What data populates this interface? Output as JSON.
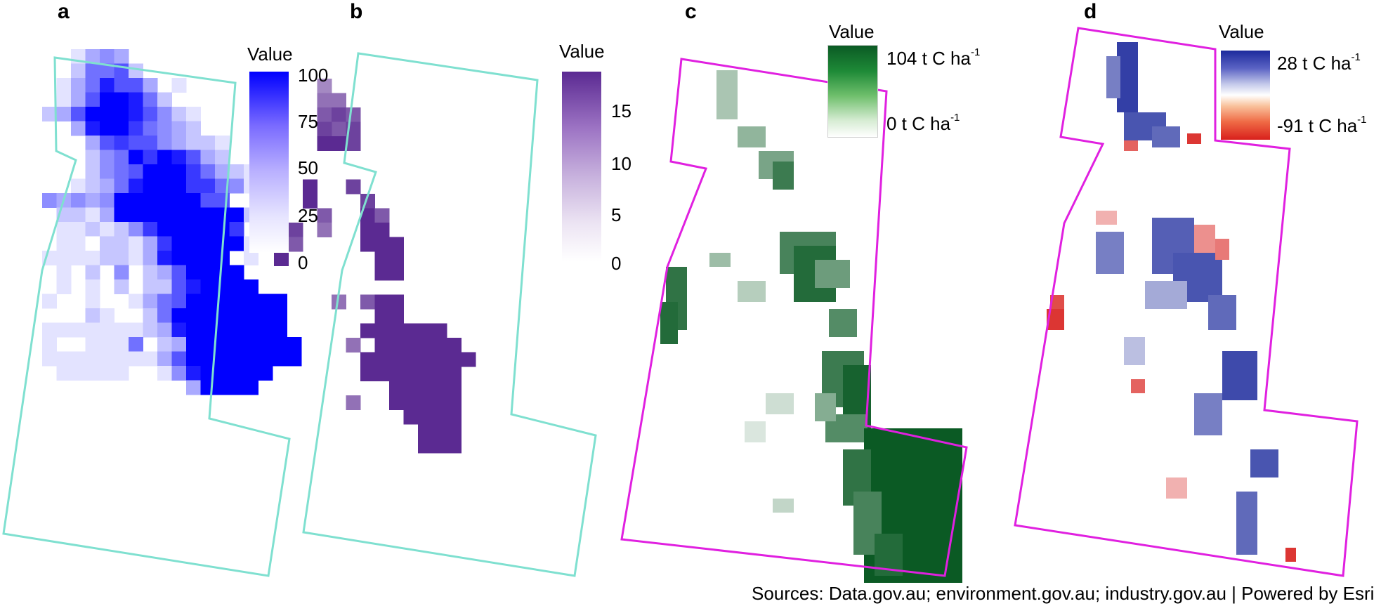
{
  "panels": {
    "a": {
      "letter": "a",
      "legend_title": "Value",
      "ticks": [
        "100",
        "75",
        "50",
        "25",
        "0"
      ]
    },
    "b": {
      "letter": "b",
      "legend_title": "Value",
      "ticks": [
        "15",
        "10",
        "5",
        "0"
      ]
    },
    "c": {
      "letter": "c",
      "legend_title": "Value",
      "max_label": "104 t C ha",
      "max_sup": "-1",
      "min_label": "0 t C ha",
      "min_sup": "-1"
    },
    "d": {
      "letter": "d",
      "legend_title": "Value",
      "max_label": "28 t C ha",
      "max_sup": "-1",
      "min_label": "-91 t C ha",
      "min_sup": "-1"
    }
  },
  "sources": "Sources: Data.gov.au; environment.gov.au; industry.gov.au | Powered by Esri",
  "colors": {
    "outline_ab": "#7fe0d0",
    "outline_cd": "#e020e0",
    "ramp_a": "#0000ff",
    "ramp_b": "#5b2a92",
    "ramp_c": "#0b5a24",
    "ramp_d_high": "#1c2a9c",
    "ramp_d_low": "#d8201c"
  }
}
